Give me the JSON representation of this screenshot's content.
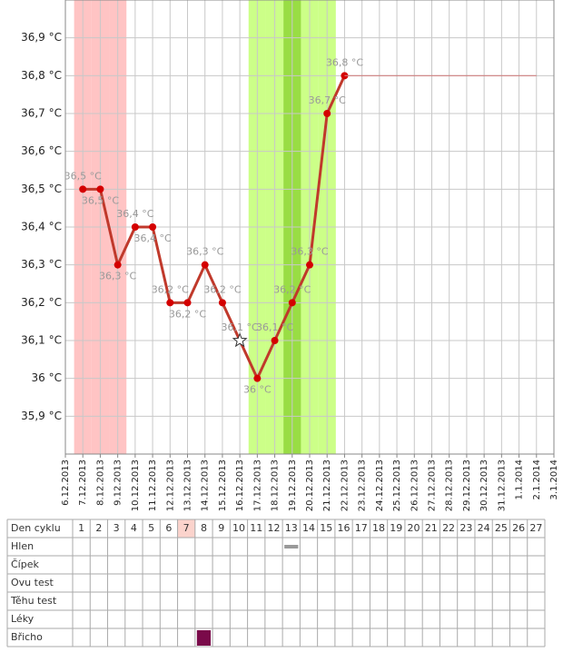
{
  "chart_data": {
    "type": "line",
    "categories": [
      "6.12.2013",
      "7.12.2013",
      "8.12.2013",
      "9.12.2013",
      "10.12.2013",
      "11.12.2013",
      "12.12.2013",
      "13.12.2013",
      "14.12.2013",
      "15.12.2013",
      "16.12.2013",
      "17.12.2013",
      "18.12.2013",
      "19.12.2013",
      "20.12.2013",
      "21.12.2013",
      "22.12.2013",
      "23.12.2013",
      "24.12.2013",
      "25.12.2013",
      "26.12.2013",
      "27.12.2013",
      "28.12.2013",
      "29.12.2013",
      "30.12.2013",
      "31.12.2013",
      "1.1.2014",
      "2.1.2014",
      "3.1.2014"
    ],
    "series": [
      {
        "color": "#c0392b",
        "values": [
          null,
          36.5,
          36.5,
          36.3,
          36.4,
          36.4,
          36.2,
          36.2,
          36.3,
          36.2,
          36.1,
          36.0,
          36.1,
          36.2,
          36.3,
          36.7,
          36.8,
          null,
          null,
          null,
          null,
          null,
          null,
          null,
          null,
          null,
          null,
          null,
          null
        ],
        "value_labels": [
          null,
          "36,5 °C",
          "36,5 °C",
          "36,3 °C",
          "36,4 °C",
          "36,4 °C",
          "36,2 °C",
          "36,2 °C",
          "36,3 °C",
          "36,2 °C",
          "36,1 °C",
          "36 °C",
          "36,1 °C",
          "36,2 °C",
          "36,3 °C",
          "36,7 °C",
          "36,8 °C",
          null,
          null,
          null,
          null,
          null,
          null,
          null,
          null,
          null,
          null,
          null,
          null
        ],
        "label_side": [
          null,
          "above",
          "below",
          "below",
          "above",
          "below",
          "above",
          "below",
          "above",
          "above",
          "above",
          "below",
          "above",
          "above",
          "above",
          "above",
          "above",
          null,
          null,
          null,
          null,
          null,
          null,
          null,
          null,
          null,
          null,
          null,
          null
        ],
        "point_shapes": [
          null,
          "circle",
          "circle",
          "circle",
          "circle",
          "circle",
          "circle",
          "circle",
          "circle",
          "circle",
          "star",
          "circle",
          "circle",
          "circle",
          "circle",
          "circle",
          "circle",
          null,
          null,
          null,
          null,
          null,
          null,
          null,
          null,
          null,
          null,
          null,
          null
        ]
      },
      {
        "color": "#d08080",
        "values": [
          null,
          null,
          null,
          null,
          null,
          null,
          null,
          null,
          null,
          null,
          null,
          null,
          null,
          null,
          null,
          null,
          36.8,
          36.8,
          36.8,
          36.8,
          36.8,
          36.8,
          36.8,
          36.8,
          36.8,
          36.8,
          36.8,
          36.8,
          null
        ]
      }
    ],
    "ylim": [
      35.8,
      37.0
    ],
    "yticks": [
      {
        "value": 35.9,
        "label": "35,9 °C"
      },
      {
        "value": 36.0,
        "label": "36 °C"
      },
      {
        "value": 36.1,
        "label": "36,1 °C"
      },
      {
        "value": 36.2,
        "label": "36,2 °C"
      },
      {
        "value": 36.3,
        "label": "36,3 °C"
      },
      {
        "value": 36.4,
        "label": "36,4 °C"
      },
      {
        "value": 36.5,
        "label": "36,5 °C"
      },
      {
        "value": 36.6,
        "label": "36,6 °C"
      },
      {
        "value": 36.7,
        "label": "36,7 °C"
      },
      {
        "value": 36.8,
        "label": "36,8 °C"
      },
      {
        "value": 36.9,
        "label": "36,9 °C"
      }
    ],
    "grid": true,
    "period_days": [
      1,
      2,
      3
    ],
    "fertile_days": [
      11,
      12,
      13,
      14,
      15
    ],
    "ovulation_days": [
      13
    ],
    "period_color": "#ffc4c4",
    "fertile_color": "#ccff88",
    "ovulation_color": "#99dd44"
  },
  "table": {
    "header_label": "Den cyklu",
    "days": [
      1,
      2,
      3,
      4,
      5,
      6,
      7,
      8,
      9,
      10,
      11,
      12,
      13,
      14,
      15,
      16,
      17,
      18,
      19,
      20,
      21,
      22,
      23,
      24,
      25,
      26,
      27
    ],
    "highlight_days": [
      7
    ],
    "rows": [
      {
        "label": "Hlen",
        "marks": [
          13
        ],
        "style": "bar",
        "color": "#999999"
      },
      {
        "label": "Čípek",
        "marks": []
      },
      {
        "label": "Ovu test",
        "marks": []
      },
      {
        "label": "Těhu test",
        "marks": []
      },
      {
        "label": "Léky",
        "marks": []
      },
      {
        "label": "Břicho",
        "marks": [
          8
        ],
        "style": "square",
        "color": "#7a0a4a"
      }
    ]
  }
}
